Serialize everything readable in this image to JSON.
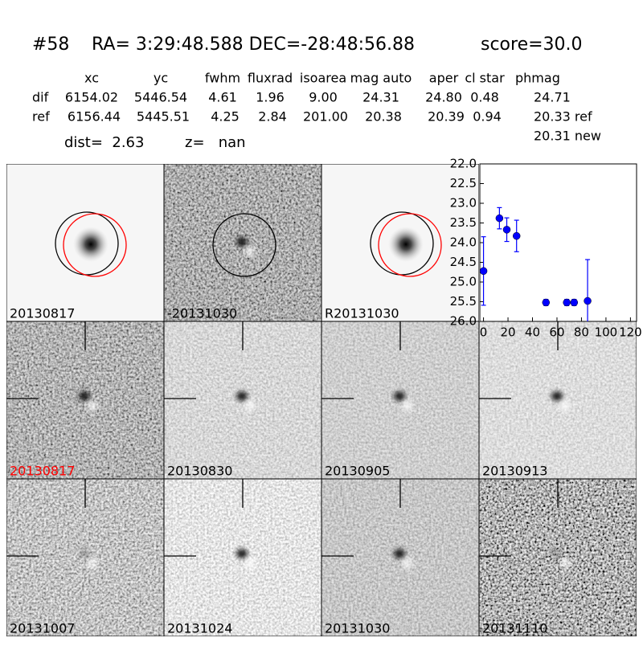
{
  "header": {
    "id": "#58",
    "coords": "RA= 3:29:48.588 DEC=-28:48:56.88",
    "score": "score=30.0"
  },
  "table": {
    "columns": [
      "xc",
      "yc",
      "fwhm",
      "fluxrad",
      "isoarea",
      "mag auto",
      "aper",
      "cl star",
      "phmag"
    ],
    "rows": [
      [
        "dif",
        "6154.02",
        "5446.54",
        "4.61",
        "1.96",
        "9.00",
        "24.31",
        "24.80",
        "0.48",
        "24.71"
      ],
      [
        "ref",
        "6156.44",
        "5445.51",
        "4.25",
        "2.84",
        "201.00",
        "20.38",
        "20.39",
        "0.94",
        "20.33 ref"
      ]
    ],
    "note": "20.31 new"
  },
  "info": {
    "dist": "dist=  2.63",
    "z": "z=   nan"
  },
  "panels": [
    {
      "label": "20130817"
    },
    {
      "label": "-20131030"
    },
    {
      "label": "R20131030"
    },
    {
      "label": "20130817",
      "color": "#ff0000"
    },
    {
      "label": "20130830"
    },
    {
      "label": "20130905"
    },
    {
      "label": "20130913"
    },
    {
      "label": "20131007"
    },
    {
      "label": "20131024"
    },
    {
      "label": "20131030"
    },
    {
      "label": "20131110"
    }
  ],
  "chart_data": {
    "type": "scatter",
    "color": "#0000ff",
    "x": [
      0,
      13,
      19,
      27,
      51,
      68,
      74,
      85
    ],
    "values": [
      24.72,
      23.38,
      23.67,
      23.83,
      25.52,
      25.52,
      25.52,
      25.48
    ],
    "errors": [
      0.87,
      0.27,
      0.3,
      0.4,
      0.08,
      0.08,
      0.08,
      1.05
    ],
    "xlim": [
      -3,
      125
    ],
    "xticks": [
      0,
      20,
      40,
      60,
      80,
      100,
      120
    ],
    "ylim": [
      26,
      22
    ],
    "yticks": [
      {
        "value": 22,
        "label": "22.0"
      },
      22.5,
      {
        "value": 23,
        "label": "23.0"
      },
      23.5,
      {
        "value": 24,
        "label": "24.0"
      },
      24.5,
      {
        "value": 25,
        "label": "25.0"
      },
      25.5,
      {
        "value": 26,
        "label": "26.0"
      }
    ]
  }
}
